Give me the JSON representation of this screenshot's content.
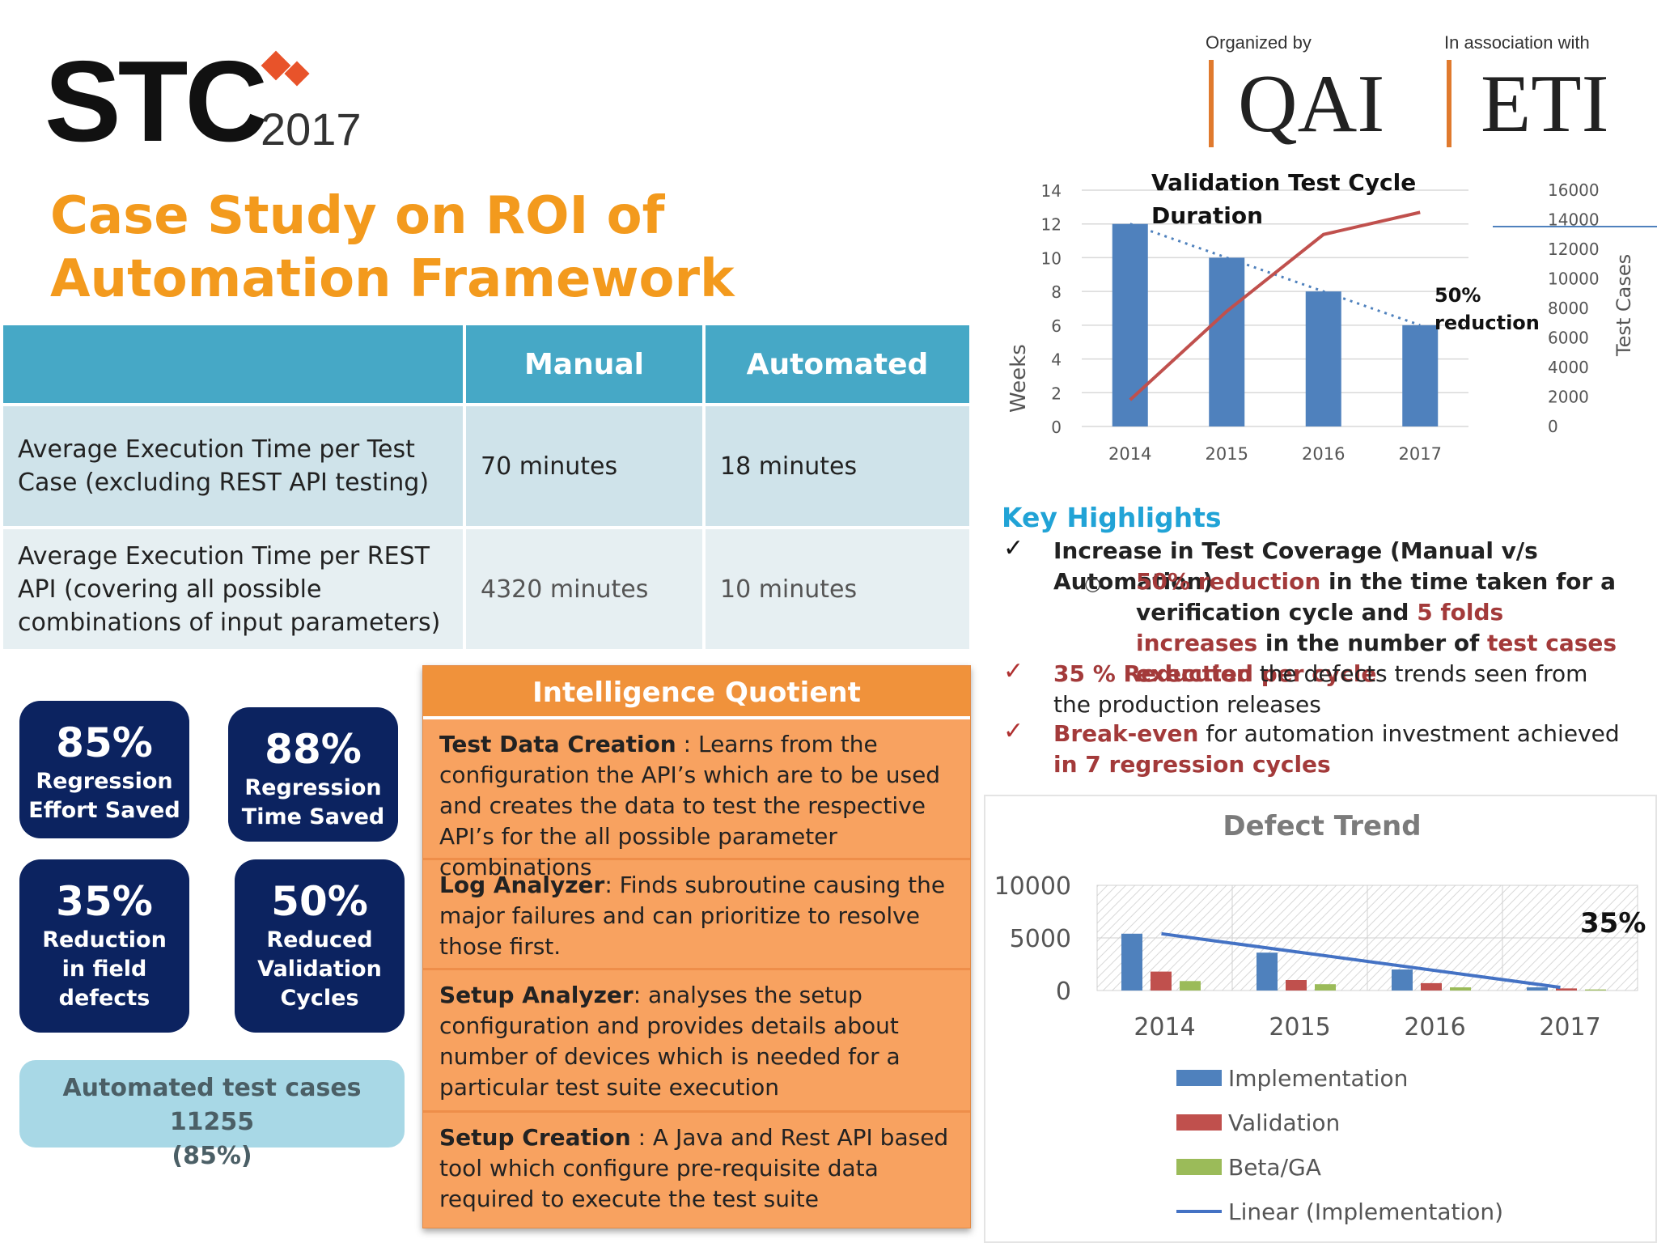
{
  "header": {
    "stc_word": "STC",
    "stc_year": "2017",
    "organized_label": "Organized by",
    "organized_name": "QAI",
    "association_label": "In association with",
    "association_name": "ETI"
  },
  "title": "Case Study on ROI of Automation Framework",
  "comparison_table": {
    "columns": [
      "",
      "Manual",
      "Automated"
    ],
    "rows": [
      {
        "label": "Average Execution Time per Test Case (excluding REST API testing)",
        "manual": "70 minutes",
        "automated": "18 minutes"
      },
      {
        "label": "Average Execution Time per REST API (covering all  possible combinations of input parameters)",
        "manual": "4320 minutes",
        "automated": "10 minutes"
      }
    ]
  },
  "stats": [
    {
      "value": "85%",
      "label_line1": "Regression",
      "label_line2": "Effort Saved",
      "label_line3": ""
    },
    {
      "value": "88%",
      "label_line1": "Regression",
      "label_line2": "Time Saved",
      "label_line3": ""
    },
    {
      "value": "35%",
      "label_line1": "Reduction",
      "label_line2": "in field",
      "label_line3": "defects"
    },
    {
      "value": "50%",
      "label_line1": "Reduced",
      "label_line2": "Validation",
      "label_line3": "Cycles"
    }
  ],
  "automated_cases": {
    "line1": "Automated test cases 11255",
    "line2": "(85%)"
  },
  "intelligence_quotient": {
    "title": "Intelligence Quotient",
    "items": [
      {
        "name": "Test Data Creation",
        "text": " : Learns from the configuration the API’s which are to be used and creates the data to test the respective API’s for the all possible parameter combinations"
      },
      {
        "name": "Log Analyzer",
        "text": ": Finds subroutine causing the major failures  and can prioritize to resolve those first."
      },
      {
        "name": "Setup Analyzer",
        "text": ": analyses the setup configuration and provides details about number of devices which is needed for a particular test suite execution"
      },
      {
        "name": "Setup Creation",
        "text": " : A Java and Rest API based tool which configure pre-requisite data required to execute the test suite"
      }
    ]
  },
  "key_highlights": {
    "title": "Key Highlights",
    "item1": "Increase in Test Coverage (Manual v/s Automation)",
    "sub_a": "50% reduction",
    "sub_b": " in the time taken for a verification cycle and ",
    "sub_c": "5 folds increases",
    "sub_d": " in the number of ",
    "sub_e": "test cases executed per cycle",
    "item2_red": "35 % Reduction",
    "item2_rest": " the defects trends seen from the production releases",
    "item3_red": "Break-even",
    "item3_mid": " for automation investment achieved ",
    "item3_red2": "in 7 regression cycles"
  },
  "chart_data": [
    {
      "type": "bar",
      "title": "Validation Test Cycle Duration",
      "categories": [
        "2014",
        "2015",
        "2016",
        "2017"
      ],
      "series": [
        {
          "type": "bar",
          "axis": "left",
          "values": [
            12,
            10,
            8,
            6
          ],
          "color": "#4f81bd"
        },
        {
          "type": "line",
          "axis": "right",
          "values": [
            1800,
            7800,
            13000,
            14500
          ],
          "color": "#c0504d"
        }
      ],
      "trendline": {
        "style": "dotted",
        "color": "#4f81bd",
        "from": 12,
        "to": 6
      },
      "ylabel": "Weeks",
      "ylim": [
        0,
        14
      ],
      "yticks": [
        "0",
        "2",
        "4",
        "6",
        "8",
        "10",
        "12",
        "14"
      ],
      "y2label": "Test Cases",
      "y2lim": [
        0,
        16000
      ],
      "y2ticks": [
        "0",
        "2000",
        "4000",
        "6000",
        "8000",
        "10000",
        "12000",
        "14000",
        "16000"
      ],
      "annotation": {
        "line1": "50%",
        "line2": "reduction"
      },
      "grid": true
    },
    {
      "type": "bar",
      "title": "Defect Trend",
      "categories": [
        "2014",
        "2015",
        "2016",
        "2017"
      ],
      "series": [
        {
          "name": "Implementation",
          "values": [
            5400,
            3600,
            2000,
            300
          ],
          "color": "#4f81bd"
        },
        {
          "name": "Validation",
          "values": [
            1800,
            1000,
            700,
            200
          ],
          "color": "#c0504d"
        },
        {
          "name": "Beta/GA",
          "values": [
            900,
            600,
            300,
            100
          ],
          "color": "#9bbb59"
        }
      ],
      "trend": {
        "name": "Linear (Implementation)",
        "from": 5400,
        "to": 300,
        "color": "#4472c4"
      },
      "ylim": [
        0,
        10000
      ],
      "yticks": [
        "0",
        "5000",
        "10000"
      ],
      "annotation": "35%",
      "legend": "bottom",
      "grid": true
    }
  ]
}
